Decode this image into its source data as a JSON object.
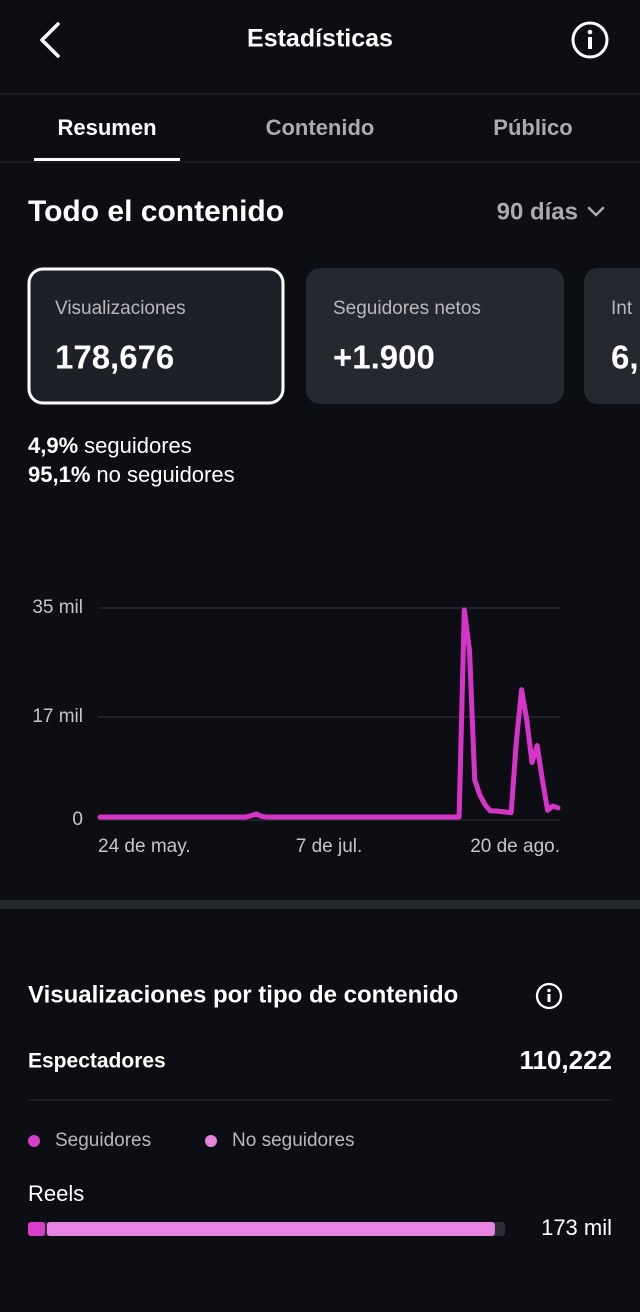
{
  "header": {
    "title": "Estadísticas"
  },
  "tabs": {
    "items": [
      "Resumen",
      "Contenido",
      "Público"
    ],
    "active": 0
  },
  "section": {
    "title": "Todo el contenido",
    "period": "90 días"
  },
  "cards": [
    {
      "label": "Visualizaciones",
      "value": "178,676"
    },
    {
      "label": "Seguidores netos",
      "value": "+1.900"
    },
    {
      "label": "Int",
      "value": "6,"
    }
  ],
  "breakdown": [
    {
      "value": "4,9%",
      "label": "seguidores"
    },
    {
      "value": "95,1%",
      "label": "no seguidores"
    }
  ],
  "chart_data": [
    {
      "type": "line",
      "color": "#d633c9",
      "categories": [
        "24 de may.",
        null,
        null,
        null,
        null,
        null,
        null,
        null,
        null,
        null,
        null,
        null,
        null,
        null,
        null,
        null,
        null,
        null,
        null,
        null,
        null,
        null,
        null,
        null,
        null,
        null,
        null,
        null,
        null,
        null,
        null,
        null,
        null,
        null,
        null,
        null,
        null,
        null,
        null,
        null,
        null,
        null,
        null,
        null,
        "7 de jul.",
        null,
        null,
        null,
        null,
        null,
        null,
        null,
        null,
        null,
        null,
        null,
        null,
        null,
        null,
        null,
        null,
        null,
        null,
        null,
        null,
        null,
        null,
        null,
        null,
        null,
        null,
        null,
        null,
        null,
        null,
        null,
        null,
        null,
        null,
        null,
        null,
        null,
        null,
        null,
        null,
        null,
        null,
        null,
        "20 de ago."
      ],
      "values": [
        500,
        500,
        500,
        500,
        500,
        500,
        500,
        500,
        500,
        500,
        500,
        500,
        500,
        500,
        500,
        500,
        500,
        500,
        500,
        500,
        500,
        500,
        500,
        500,
        500,
        500,
        500,
        500,
        500,
        700,
        1000,
        600,
        500,
        500,
        500,
        500,
        500,
        500,
        500,
        500,
        500,
        500,
        500,
        500,
        500,
        500,
        500,
        500,
        500,
        500,
        500,
        500,
        500,
        500,
        500,
        500,
        500,
        500,
        500,
        500,
        500,
        500,
        500,
        500,
        500,
        500,
        500,
        500,
        500,
        500,
        34700,
        28000,
        6600,
        4100,
        2500,
        1500,
        1500,
        1400,
        1300,
        1200,
        13000,
        21500,
        16500,
        9500,
        12300,
        6600,
        1600,
        2300,
        2000
      ],
      "ylim": [
        0,
        35000
      ],
      "yticks": [
        0,
        {
          "value": 17000,
          "label": "17 mil"
        },
        {
          "value": 35000,
          "label": "35 mil"
        }
      ],
      "grid": true
    },
    {
      "type": "hbar-stacked",
      "categories": [
        "Reels"
      ],
      "series": [
        {
          "name": "Seguidores",
          "color": "#d63fc6",
          "values": [
            7000
          ]
        },
        {
          "name": "No seguidores",
          "color": "#e784e2",
          "values": [
            166000
          ]
        }
      ],
      "xlim": [
        0,
        176000
      ],
      "total_labels": [
        "173 mil"
      ]
    }
  ],
  "content_type": {
    "title": "Visualizaciones por tipo de contenido",
    "metric_label": "Espectadores",
    "metric_value": "110,222"
  }
}
